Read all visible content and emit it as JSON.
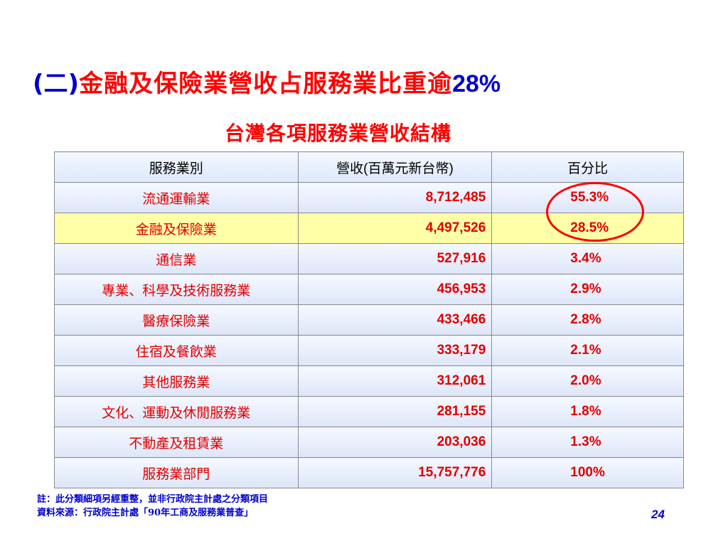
{
  "title": {
    "paren": "(二)",
    "text": "金融及保險業營收占服務業比重逾",
    "number": "28%"
  },
  "table_title": "台灣各項服務業營收結構",
  "table": {
    "headers": {
      "category": "服務業別",
      "revenue_prefix": "營收",
      "revenue_paren_open": "(",
      "revenue_unit": "百萬元新台幣",
      "revenue_paren_close": ")",
      "percent": "百分比"
    },
    "rows": [
      {
        "category": "流通運輸業",
        "revenue": "8,712,485",
        "percent": "55.3%"
      },
      {
        "category": "金融及保險業",
        "revenue": "4,497,526",
        "percent": "28.5%"
      },
      {
        "category": "通信業",
        "revenue": "527,916",
        "percent": "3.4%"
      },
      {
        "category": "專業、科學及技術服務業",
        "revenue": "456,953",
        "percent": "2.9%"
      },
      {
        "category": "醫療保險業",
        "revenue": "433,466",
        "percent": "2.8%"
      },
      {
        "category": "住宿及餐飲業",
        "revenue": "333,179",
        "percent": "2.1%"
      },
      {
        "category": "其他服務業",
        "revenue": "312,061",
        "percent": "2.0%"
      },
      {
        "category": "文化、運動及休閒服務業",
        "revenue": "281,155",
        "percent": "1.8%"
      },
      {
        "category": "不動產及租賃業",
        "revenue": "203,036",
        "percent": "1.3%"
      },
      {
        "category": "服務業部門",
        "revenue": "15,757,776",
        "percent": "100%"
      }
    ],
    "highlight_row": 2
  },
  "footnote": {
    "note": "註：此分類細項另經重整，並非行政院主計處之分類項目",
    "source": "資料來源：行政院主計處「90年工商及服務業普查」"
  },
  "page_number": "24",
  "colors": {
    "title_red": "#ff0000",
    "accent_blue": "#0000cc",
    "value_red": "#e00000",
    "highlight_yellow": "#ffffa8",
    "cell_blue": "#dde6f8"
  }
}
